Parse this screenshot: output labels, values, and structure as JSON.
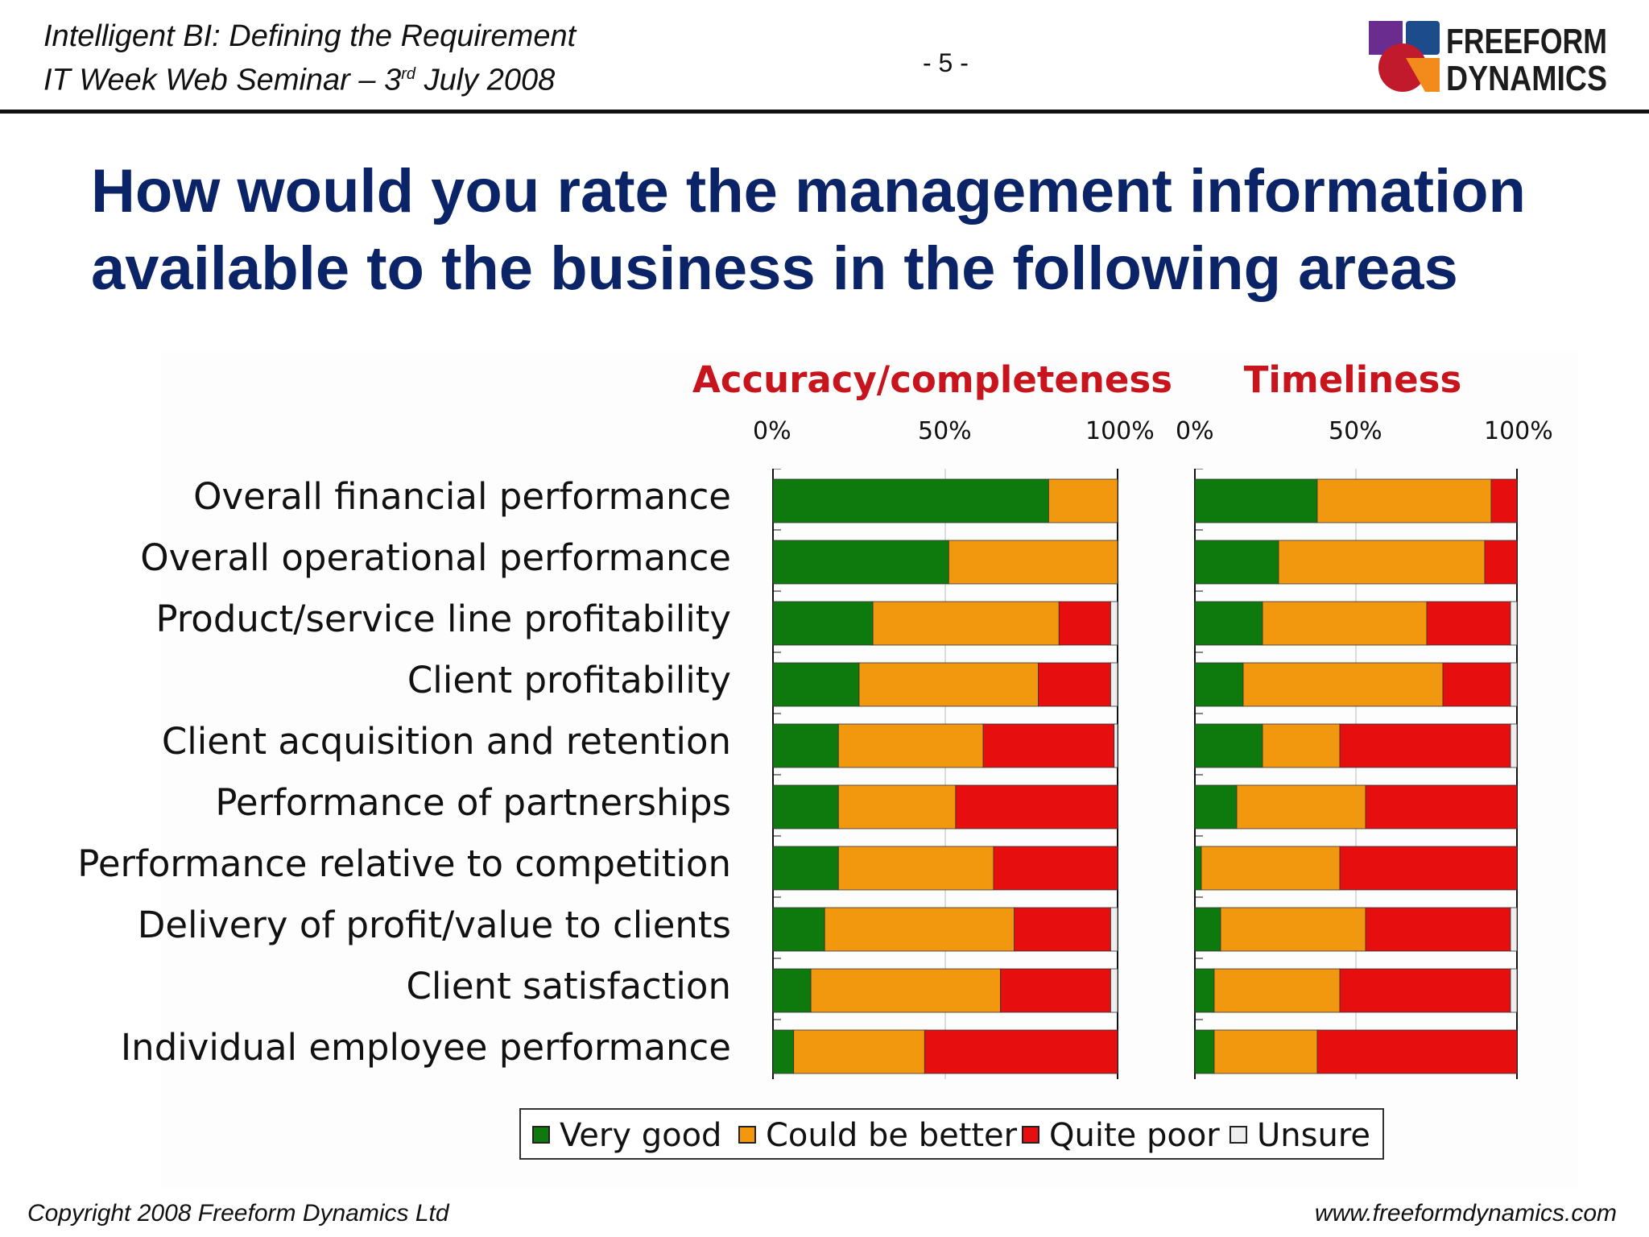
{
  "header": {
    "line1": "Intelligent BI: Defining the Requirement",
    "line2_prefix": "IT Week Web Seminar – 3",
    "line2_sup": "rd",
    "line2_suffix": " July 2008",
    "page_number": "- 5 -"
  },
  "logo": {
    "line1": "FREEFORM",
    "line2": "DYNAMICS",
    "colors": [
      "#6a2c8e",
      "#1c4c8c",
      "#c01a2c",
      "#f28a1c"
    ]
  },
  "title": "How would you rate the management information available to the business in the following areas",
  "colors": {
    "very_good": "#0e7a0e",
    "could_be_better": "#f2980f",
    "quite_poor": "#e60e0e",
    "unsure": "#eeeeee",
    "title_blue": "#0b2467",
    "chart_title_red": "#c8141c"
  },
  "legend": {
    "items": [
      {
        "label": "Very good",
        "color": "#0e7a0e"
      },
      {
        "label": "Could be better",
        "color": "#f2980f"
      },
      {
        "label": "Quite poor",
        "color": "#e60e0e"
      },
      {
        "label": "Unsure",
        "color": "#eeeeee"
      }
    ]
  },
  "chart_data": [
    {
      "type": "bar",
      "orientation": "horizontal",
      "stacked": "percent",
      "title": "Accuracy/completeness",
      "xlim": [
        0,
        100
      ],
      "x_ticks": [
        "0%",
        "50%",
        "100%"
      ],
      "grid": true,
      "legend_position": "bottom",
      "categories": [
        "Overall financial performance",
        "Overall operational performance",
        "Product/service line profitability",
        "Client profitability",
        "Client acquisition and retention",
        "Performance of partnerships",
        "Performance relative to competition",
        "Delivery of profit/value to clients",
        "Client satisfaction",
        "Individual employee performance"
      ],
      "series": [
        {
          "name": "Very good",
          "values": [
            80,
            51,
            29,
            25,
            19,
            19,
            19,
            15,
            11,
            6
          ]
        },
        {
          "name": "Could be better",
          "values": [
            20,
            49,
            54,
            52,
            42,
            34,
            45,
            55,
            55,
            38
          ]
        },
        {
          "name": "Quite poor",
          "values": [
            0,
            0,
            15,
            21,
            38,
            47,
            36,
            28,
            32,
            56
          ]
        },
        {
          "name": "Unsure",
          "values": [
            0,
            0,
            2,
            2,
            1,
            0,
            0,
            2,
            2,
            0
          ]
        }
      ]
    },
    {
      "type": "bar",
      "orientation": "horizontal",
      "stacked": "percent",
      "title": "Timeliness",
      "xlim": [
        0,
        100
      ],
      "x_ticks": [
        "0%",
        "50%",
        "100%"
      ],
      "grid": true,
      "legend_position": "bottom",
      "categories": [
        "Overall financial performance",
        "Overall operational performance",
        "Product/service line profitability",
        "Client profitability",
        "Client acquisition and retention",
        "Performance of partnerships",
        "Performance relative to competition",
        "Delivery of profit/value to clients",
        "Client satisfaction",
        "Individual employee performance"
      ],
      "series": [
        {
          "name": "Very good",
          "values": [
            38,
            26,
            21,
            15,
            21,
            13,
            2,
            8,
            6,
            6
          ]
        },
        {
          "name": "Could be better",
          "values": [
            54,
            64,
            51,
            62,
            24,
            40,
            43,
            45,
            39,
            32
          ]
        },
        {
          "name": "Quite poor",
          "values": [
            8,
            10,
            26,
            21,
            53,
            47,
            55,
            45,
            53,
            62
          ]
        },
        {
          "name": "Unsure",
          "values": [
            0,
            0,
            2,
            2,
            2,
            0,
            0,
            2,
            2,
            0
          ]
        }
      ]
    }
  ],
  "footer": {
    "copyright": "Copyright 2008 Freeform Dynamics Ltd",
    "url": "www.freeformdynamics.com"
  }
}
